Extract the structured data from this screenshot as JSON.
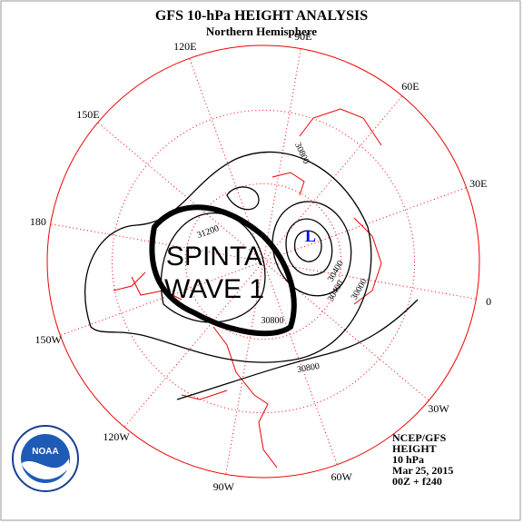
{
  "header": {
    "title": "GFS 10-hPa HEIGHT ANALYSIS",
    "subtitle": "Northern Hemisphere"
  },
  "longitudes": [
    "90E",
    "60E",
    "30E",
    "0",
    "30W",
    "60W",
    "90W",
    "120W",
    "150W",
    "180",
    "150E",
    "120E"
  ],
  "contour_labels": [
    "30800",
    "31200",
    "30800",
    "30400",
    "30000",
    "30400",
    "30800"
  ],
  "low_label": "L",
  "annotation": [
    "SPINTA",
    "WAVE 1"
  ],
  "footer": [
    "NCEP/GFS",
    "HEIGHT",
    "10 hPa",
    "Mar 25, 2015",
    "00Z + f240"
  ],
  "logo": "NOAA"
}
